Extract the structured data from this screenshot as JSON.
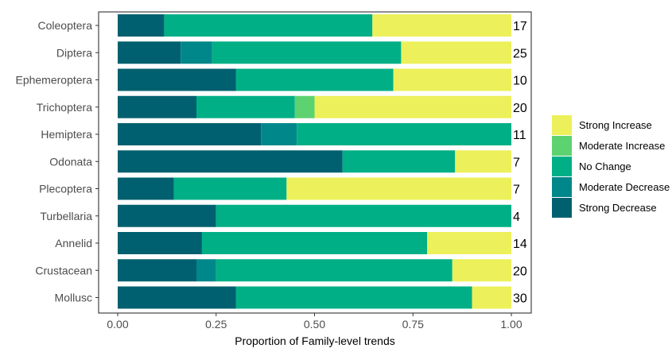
{
  "chart_data": {
    "type": "bar",
    "orientation": "horizontal",
    "stacked": true,
    "xlabel": "Proportion of Family-level trends",
    "ylabel": "",
    "xlim": [
      0,
      1
    ],
    "xticks": [
      "0.00",
      "0.25",
      "0.50",
      "0.75",
      "1.00"
    ],
    "grid": false,
    "legend_position": "right",
    "categories": [
      "Coleoptera",
      "Diptera",
      "Ephemeroptera",
      "Trichoptera",
      "Hemiptera",
      "Odonata",
      "Plecoptera",
      "Turbellaria",
      "Annelid",
      "Crustacean",
      "Mollusc"
    ],
    "counts": [
      "17",
      "25",
      "10",
      "20",
      "11",
      "7",
      "7",
      "4",
      "14",
      "20",
      "30"
    ],
    "series": [
      {
        "name": "Strong Decrease",
        "color": "#01606F",
        "values": [
          0.118,
          0.16,
          0.3,
          0.2,
          0.364,
          0.571,
          0.143,
          0.25,
          0.214,
          0.2,
          0.3
        ]
      },
      {
        "name": "Moderate Decrease",
        "color": "#00878A",
        "values": [
          0.0,
          0.08,
          0.0,
          0.0,
          0.091,
          0.0,
          0.0,
          0.0,
          0.0,
          0.05,
          0.0
        ]
      },
      {
        "name": "No Change",
        "color": "#00AF86",
        "values": [
          0.529,
          0.48,
          0.4,
          0.25,
          0.545,
          0.286,
          0.286,
          0.75,
          0.572,
          0.6,
          0.6
        ]
      },
      {
        "name": "Moderate Increase",
        "color": "#5DD271",
        "values": [
          0.0,
          0.0,
          0.0,
          0.05,
          0.0,
          0.0,
          0.0,
          0.0,
          0.0,
          0.0,
          0.0
        ]
      },
      {
        "name": "Strong Increase",
        "color": "#ECF05A",
        "values": [
          0.353,
          0.28,
          0.3,
          0.5,
          0.0,
          0.143,
          0.571,
          0.0,
          0.214,
          0.15,
          0.1
        ]
      }
    ],
    "legend_order": [
      "Strong Increase",
      "Moderate Increase",
      "No Change",
      "Moderate Decrease",
      "Strong Decrease"
    ]
  }
}
